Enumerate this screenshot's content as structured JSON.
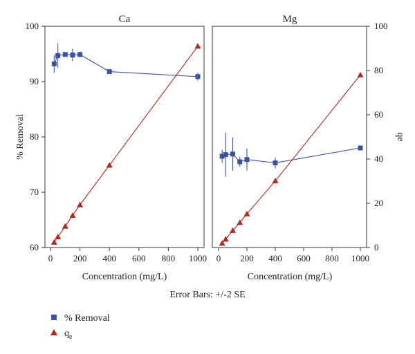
{
  "chart_data": {
    "type": "line",
    "footnote": "Error Bars: +/-2 SE",
    "ylabel_left": "% Removal",
    "ylabel_right": "qe",
    "ylim_left": [
      60,
      100
    ],
    "ylim_right": [
      0,
      100
    ],
    "yticks_left": [
      "60",
      "70",
      "80",
      "90",
      "100"
    ],
    "yticks_right": [
      "0",
      "20",
      "40",
      "60",
      "80",
      "100"
    ],
    "legend": {
      "placement": "bottom-left",
      "entries": [
        {
          "label": "% Removal",
          "marker": "square",
          "color": "#3a52a3"
        },
        {
          "label": "q",
          "subscript": "e",
          "marker": "triangle",
          "color": "#b5271b"
        }
      ]
    },
    "colors": {
      "removal": "#3a52a3",
      "qe": "#b5271b"
    },
    "panels": [
      {
        "title": "Ca",
        "xlabel": "Concentration (mg/L)",
        "xlim": [
          0,
          1050
        ],
        "xticks": [
          "0",
          "200",
          "400",
          "600",
          "800",
          "1000"
        ],
        "series": [
          {
            "name": "% Removal",
            "axis": "left",
            "x": [
              25,
              50,
              100,
              150,
              200,
              400,
              1000
            ],
            "y": [
              93.2,
              94.7,
              94.9,
              94.8,
              94.9,
              91.8,
              90.9
            ],
            "err": [
              1.6,
              2.2,
              0.4,
              1.1,
              0.5,
              0.4,
              0.7
            ]
          },
          {
            "name": "q",
            "axis": "right",
            "x": [
              25,
              50,
              100,
              150,
              200,
              400,
              1000
            ],
            "y": [
              2.4,
              4.8,
              9.6,
              14.5,
              19.3,
              37.2,
              91.0
            ]
          }
        ]
      },
      {
        "title": "Mg",
        "xlabel": "Concentration (mg/L)",
        "xlim": [
          0,
          1050
        ],
        "xticks": [
          "0",
          "200",
          "400",
          "600",
          "800",
          "1000"
        ],
        "series": [
          {
            "name": "% Removal",
            "axis": "left",
            "x": [
              25,
              50,
              100,
              150,
              200,
              400,
              1000
            ],
            "y": [
              76.5,
              76.8,
              76.9,
              75.5,
              75.9,
              75.3,
              78.0
            ],
            "err": [
              1.2,
              4.0,
              3.0,
              0.9,
              2.0,
              1.0,
              0.4
            ]
          },
          {
            "name": "q",
            "axis": "right",
            "x": [
              25,
              50,
              100,
              150,
              200,
              400,
              1000
            ],
            "y": [
              1.9,
              3.8,
              7.7,
              11.3,
              15.2,
              30.1,
              78.0
            ]
          }
        ]
      }
    ]
  }
}
